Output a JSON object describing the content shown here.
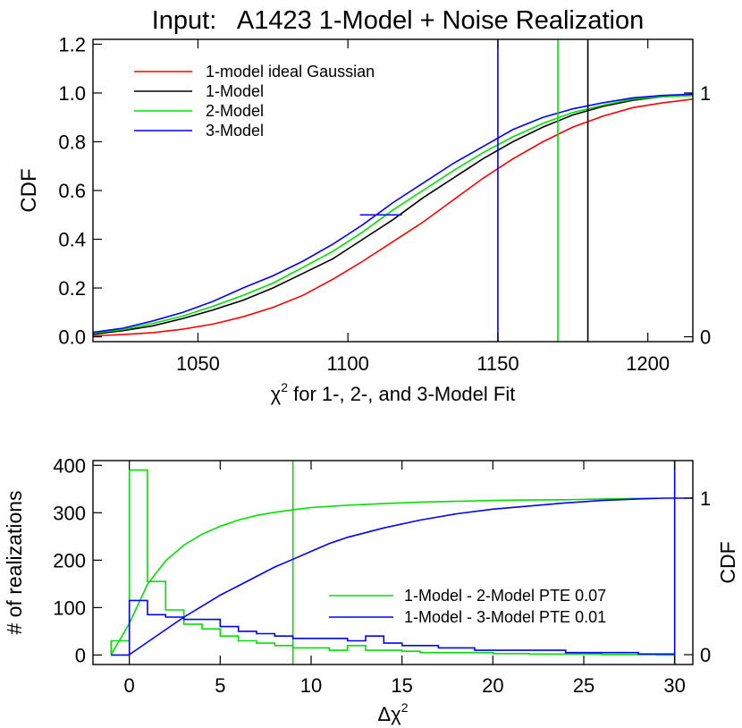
{
  "figure_title": "Input:   A1423 1-Model + Noise Realization",
  "chart_data": [
    {
      "type": "line",
      "xlabel": "χ² for 1-, 2-, and 3-Model Fit",
      "ylabel": "CDF",
      "xlim": [
        1015,
        1215
      ],
      "ylim": [
        -0.02,
        1.22
      ],
      "xticks": [
        1050,
        1100,
        1150,
        1200
      ],
      "yticks": [
        0.0,
        0.2,
        0.4,
        0.6,
        0.8,
        1.0,
        1.2
      ],
      "ytick_labels": [
        "0.0",
        "0.2",
        "0.4",
        "0.6",
        "0.8",
        "1.0",
        "1.2"
      ],
      "right_axis": {
        "ticks": [
          0,
          1
        ],
        "labels": [
          "0",
          "1"
        ]
      },
      "legend_position": "top-left",
      "series": [
        {
          "name": "1-model ideal Gaussian",
          "color": "#ff0000",
          "x": [
            1015,
            1025,
            1035,
            1045,
            1055,
            1065,
            1075,
            1085,
            1095,
            1105,
            1115,
            1125,
            1135,
            1145,
            1155,
            1165,
            1175,
            1185,
            1195,
            1205,
            1215
          ],
          "y": [
            0.004,
            0.009,
            0.017,
            0.031,
            0.052,
            0.082,
            0.12,
            0.17,
            0.236,
            0.31,
            0.39,
            0.47,
            0.56,
            0.65,
            0.73,
            0.8,
            0.86,
            0.905,
            0.94,
            0.96,
            0.975
          ]
        },
        {
          "name": "1-Model",
          "color": "#000000",
          "x": [
            1015,
            1025,
            1035,
            1045,
            1055,
            1065,
            1075,
            1085,
            1095,
            1105,
            1115,
            1125,
            1135,
            1145,
            1155,
            1165,
            1175,
            1185,
            1195,
            1205,
            1215
          ],
          "y": [
            0.01,
            0.025,
            0.045,
            0.075,
            0.11,
            0.15,
            0.2,
            0.26,
            0.32,
            0.4,
            0.48,
            0.57,
            0.65,
            0.73,
            0.8,
            0.86,
            0.91,
            0.945,
            0.97,
            0.985,
            0.99
          ]
        },
        {
          "name": "2-Model",
          "color": "#00e000",
          "x": [
            1015,
            1025,
            1035,
            1045,
            1055,
            1065,
            1075,
            1085,
            1095,
            1105,
            1115,
            1125,
            1135,
            1145,
            1155,
            1165,
            1175,
            1185,
            1195,
            1205,
            1215
          ],
          "y": [
            0.015,
            0.03,
            0.055,
            0.085,
            0.125,
            0.17,
            0.22,
            0.285,
            0.35,
            0.43,
            0.52,
            0.6,
            0.68,
            0.755,
            0.82,
            0.875,
            0.92,
            0.95,
            0.975,
            0.985,
            0.99
          ]
        },
        {
          "name": "3-Model",
          "color": "#0000ff",
          "x": [
            1015,
            1025,
            1035,
            1045,
            1055,
            1065,
            1075,
            1085,
            1095,
            1105,
            1115,
            1125,
            1135,
            1145,
            1155,
            1165,
            1175,
            1185,
            1195,
            1205,
            1215
          ],
          "y": [
            0.018,
            0.035,
            0.065,
            0.1,
            0.145,
            0.2,
            0.25,
            0.31,
            0.38,
            0.46,
            0.55,
            0.63,
            0.71,
            0.78,
            0.85,
            0.9,
            0.935,
            0.96,
            0.98,
            0.99,
            0.995
          ]
        }
      ],
      "vertical_lines": [
        {
          "x": 1150,
          "color": "#0000ff"
        },
        {
          "x": 1170,
          "color": "#00e000"
        },
        {
          "x": 1180,
          "color": "#000000"
        }
      ],
      "median_segment": {
        "x": [
          1104,
          1118
        ],
        "y": 0.5,
        "color": "#0000ff"
      }
    },
    {
      "type": "histogram",
      "xlabel": "Δχ²",
      "ylabel": "# of realizations",
      "ylabel_right": "CDF",
      "xlim": [
        -2,
        31
      ],
      "ylim": [
        -20,
        410
      ],
      "xticks": [
        0,
        5,
        10,
        15,
        20,
        25,
        30
      ],
      "yticks": [
        0,
        100,
        200,
        300,
        400
      ],
      "right_axis": {
        "ticks": [
          0,
          1
        ],
        "labels": [
          "0",
          "1"
        ]
      },
      "legend_position": "bottom-right",
      "histogram_bins": {
        "start": -1,
        "width": 1
      },
      "series": [
        {
          "name": "1-Model - 2-Model PTE 0.07",
          "color": "#00e000",
          "counts": [
            30,
            390,
            155,
            95,
            65,
            55,
            40,
            30,
            25,
            20,
            15,
            15,
            10,
            20,
            10,
            10,
            8,
            5,
            5,
            5,
            5,
            3,
            3,
            2,
            2,
            2,
            2,
            1,
            1,
            1,
            0
          ],
          "cdf_x": [
            -1,
            0,
            1,
            2,
            3,
            4,
            5,
            6,
            7,
            8,
            9,
            10,
            12,
            14,
            16,
            18,
            20,
            22,
            24,
            26,
            29
          ],
          "cdf_y": [
            0.0,
            0.2,
            0.45,
            0.6,
            0.7,
            0.77,
            0.82,
            0.86,
            0.89,
            0.91,
            0.925,
            0.94,
            0.955,
            0.965,
            0.975,
            0.98,
            0.985,
            0.988,
            0.99,
            0.995,
            1.0
          ],
          "threshold_x": 9
        },
        {
          "name": "1-Model - 3-Model PTE 0.01",
          "color": "#0000ff",
          "counts": [
            0,
            115,
            85,
            80,
            75,
            75,
            60,
            50,
            45,
            40,
            35,
            35,
            35,
            30,
            40,
            25,
            20,
            20,
            15,
            15,
            10,
            10,
            10,
            10,
            10,
            5,
            5,
            5,
            5,
            2,
            2
          ],
          "cdf_x": [
            0,
            1,
            2,
            3,
            4,
            5,
            6,
            7,
            8,
            9,
            10,
            11,
            12,
            14,
            16,
            18,
            20,
            22,
            24,
            26,
            28,
            29.5,
            31
          ],
          "cdf_y": [
            0.0,
            0.08,
            0.16,
            0.24,
            0.31,
            0.38,
            0.44,
            0.5,
            0.56,
            0.61,
            0.66,
            0.71,
            0.75,
            0.81,
            0.86,
            0.9,
            0.93,
            0.95,
            0.97,
            0.985,
            0.995,
            1.0,
            1.0
          ],
          "threshold_x": 30
        }
      ]
    }
  ]
}
